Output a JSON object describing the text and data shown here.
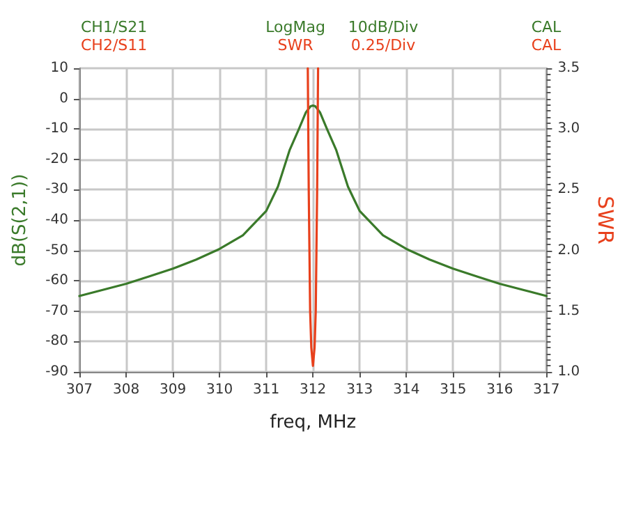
{
  "chart_data": {
    "type": "line",
    "xlabel": "freq, MHz",
    "ylabel": "dB(S(2,1))",
    "y2label": "SWR",
    "annotations": [
      "CH1/S21",
      "LogMag",
      "10dB/Div",
      "CAL",
      "CH2/S11",
      "SWR",
      "0.25/Div",
      "CAL"
    ],
    "series": [
      {
        "color": "#3a7a2a",
        "x": [
          307,
          307.5,
          308,
          308.5,
          309,
          309.5,
          310,
          310.5,
          311,
          311.25,
          311.5,
          311.7,
          311.85,
          311.95,
          312,
          312.05,
          312.15,
          312.3,
          312.5,
          312.75,
          313,
          313.5,
          314,
          314.5,
          315,
          315.5,
          316,
          316.5,
          317
        ],
        "values": [
          -65,
          -63,
          -61,
          -58.5,
          -56,
          -53,
          -49.5,
          -45,
          -37,
          -29,
          -17,
          -10,
          -4.5,
          -2.5,
          -2.3,
          -2.5,
          -4.5,
          -10,
          -17,
          -29,
          -37,
          -45,
          -49.5,
          -53,
          -56,
          -58.5,
          -61,
          -63,
          -65
        ]
      },
      {
        "color": "#e8401c",
        "axis": "y2",
        "x": [
          311.89,
          311.91,
          311.925,
          311.94,
          311.965,
          312,
          312.035,
          312.06,
          312.075,
          312.09,
          312.11
        ],
        "values": [
          3.5,
          2.5,
          2.0,
          1.5,
          1.2,
          1.05,
          1.2,
          1.5,
          2.0,
          2.5,
          3.5
        ]
      }
    ],
    "xlim": [
      307,
      317
    ],
    "xticks": [
      307,
      308,
      309,
      310,
      311,
      312,
      313,
      314,
      315,
      316,
      317
    ],
    "ylim": [
      -90,
      10
    ],
    "yticks": [
      -90,
      -80,
      -70,
      -60,
      -50,
      -40,
      -30,
      -20,
      -10,
      0,
      10
    ],
    "y2lim": [
      1.0,
      3.5
    ],
    "y2ticks": [
      {
        "value": 1,
        "label": "1.0"
      },
      {
        "value": 1.5,
        "label": "1.5"
      },
      {
        "value": 2,
        "label": "2.0"
      },
      {
        "value": 2.5,
        "label": "2.5"
      },
      {
        "value": 3,
        "label": "3.0"
      },
      {
        "value": 3.5,
        "label": "3.5"
      }
    ],
    "grid": true,
    "marker": "none",
    "line_style": "solid"
  }
}
